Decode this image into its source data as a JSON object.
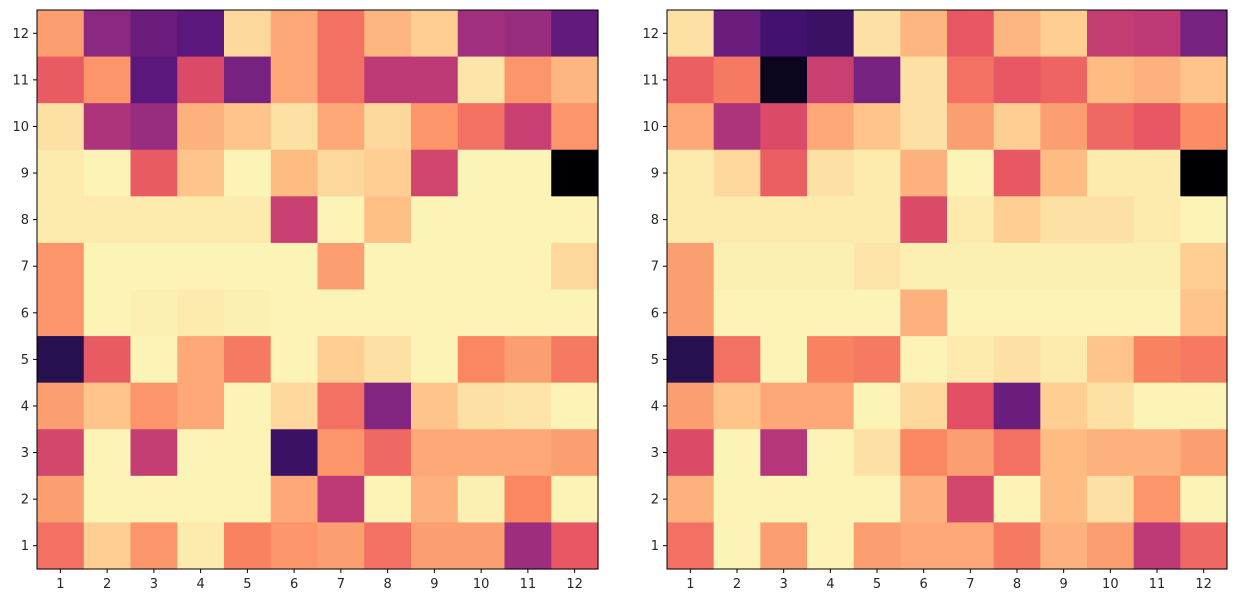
{
  "chart_data": [
    {
      "type": "heatmap",
      "title": "",
      "xlabel": "",
      "ylabel": "",
      "x_ticks": [
        "1",
        "2",
        "3",
        "4",
        "5",
        "6",
        "7",
        "8",
        "9",
        "10",
        "11",
        "12"
      ],
      "y_ticks": [
        "1",
        "2",
        "3",
        "4",
        "5",
        "6",
        "7",
        "8",
        "9",
        "10",
        "11",
        "12"
      ],
      "y_order": "bottom-to-top",
      "colormap": "magma_r",
      "value_range": [
        0,
        1
      ],
      "grid": false,
      "values_by_row_top_to_bottom": [
        [
          0.2,
          0.6,
          0.68,
          0.72,
          0.08,
          0.18,
          0.3,
          0.15,
          0.1,
          0.55,
          0.57,
          0.7
        ],
        [
          0.35,
          0.22,
          0.72,
          0.4,
          0.65,
          0.18,
          0.3,
          0.48,
          0.48,
          0.05,
          0.22,
          0.15
        ],
        [
          0.06,
          0.52,
          0.57,
          0.16,
          0.12,
          0.06,
          0.18,
          0.08,
          0.22,
          0.3,
          0.45,
          0.22
        ],
        [
          0.04,
          0.02,
          0.35,
          0.12,
          0.02,
          0.14,
          0.08,
          0.1,
          0.43,
          0.02,
          0.02,
          1.0
        ],
        [
          0.04,
          0.04,
          0.04,
          0.04,
          0.04,
          0.45,
          0.02,
          0.13,
          0.02,
          0.02,
          0.02,
          0.02
        ],
        [
          0.22,
          0.02,
          0.02,
          0.02,
          0.02,
          0.02,
          0.2,
          0.02,
          0.02,
          0.02,
          0.02,
          0.08
        ],
        [
          0.22,
          0.02,
          0.03,
          0.04,
          0.03,
          0.02,
          0.02,
          0.02,
          0.02,
          0.02,
          0.02,
          0.02
        ],
        [
          0.85,
          0.35,
          0.02,
          0.18,
          0.28,
          0.02,
          0.1,
          0.06,
          0.02,
          0.25,
          0.2,
          0.28
        ],
        [
          0.2,
          0.12,
          0.22,
          0.18,
          0.02,
          0.08,
          0.3,
          0.62,
          0.12,
          0.06,
          0.05,
          0.02
        ],
        [
          0.42,
          0.02,
          0.46,
          0.02,
          0.02,
          0.8,
          0.22,
          0.32,
          0.18,
          0.18,
          0.18,
          0.2
        ],
        [
          0.2,
          0.02,
          0.02,
          0.02,
          0.02,
          0.18,
          0.48,
          0.02,
          0.16,
          0.03,
          0.25,
          0.02
        ],
        [
          0.3,
          0.1,
          0.22,
          0.04,
          0.26,
          0.22,
          0.2,
          0.3,
          0.2,
          0.2,
          0.56,
          0.36
        ]
      ]
    },
    {
      "type": "heatmap",
      "title": "",
      "xlabel": "",
      "ylabel": "",
      "x_ticks": [
        "1",
        "2",
        "3",
        "4",
        "5",
        "6",
        "7",
        "8",
        "9",
        "10",
        "11",
        "12"
      ],
      "y_ticks": [
        "1",
        "2",
        "3",
        "4",
        "5",
        "6",
        "7",
        "8",
        "9",
        "10",
        "11",
        "12"
      ],
      "y_order": "bottom-to-top",
      "colormap": "magma_r",
      "value_range": [
        0,
        1
      ],
      "grid": false,
      "values_by_row_top_to_bottom": [
        [
          0.06,
          0.68,
          0.78,
          0.8,
          0.06,
          0.15,
          0.36,
          0.15,
          0.1,
          0.46,
          0.48,
          0.65
        ],
        [
          0.34,
          0.28,
          0.95,
          0.45,
          0.65,
          0.06,
          0.3,
          0.36,
          0.33,
          0.14,
          0.16,
          0.12
        ],
        [
          0.18,
          0.52,
          0.4,
          0.18,
          0.12,
          0.06,
          0.2,
          0.1,
          0.2,
          0.32,
          0.36,
          0.24
        ],
        [
          0.04,
          0.08,
          0.34,
          0.06,
          0.04,
          0.16,
          0.02,
          0.36,
          0.14,
          0.04,
          0.04,
          1.0
        ],
        [
          0.04,
          0.04,
          0.04,
          0.04,
          0.04,
          0.4,
          0.04,
          0.1,
          0.06,
          0.06,
          0.04,
          0.02
        ],
        [
          0.2,
          0.03,
          0.03,
          0.03,
          0.05,
          0.03,
          0.03,
          0.03,
          0.03,
          0.03,
          0.03,
          0.1
        ],
        [
          0.2,
          0.02,
          0.02,
          0.02,
          0.02,
          0.16,
          0.02,
          0.02,
          0.02,
          0.02,
          0.02,
          0.12
        ],
        [
          0.85,
          0.3,
          0.02,
          0.26,
          0.28,
          0.02,
          0.04,
          0.06,
          0.04,
          0.12,
          0.26,
          0.28
        ],
        [
          0.2,
          0.12,
          0.18,
          0.18,
          0.02,
          0.08,
          0.38,
          0.68,
          0.1,
          0.06,
          0.02,
          0.02
        ],
        [
          0.4,
          0.02,
          0.5,
          0.02,
          0.06,
          0.25,
          0.2,
          0.3,
          0.14,
          0.16,
          0.16,
          0.2
        ],
        [
          0.16,
          0.02,
          0.02,
          0.02,
          0.02,
          0.16,
          0.42,
          0.02,
          0.14,
          0.06,
          0.22,
          0.02
        ],
        [
          0.3,
          0.02,
          0.2,
          0.02,
          0.2,
          0.18,
          0.18,
          0.28,
          0.16,
          0.2,
          0.48,
          0.32
        ]
      ]
    }
  ]
}
